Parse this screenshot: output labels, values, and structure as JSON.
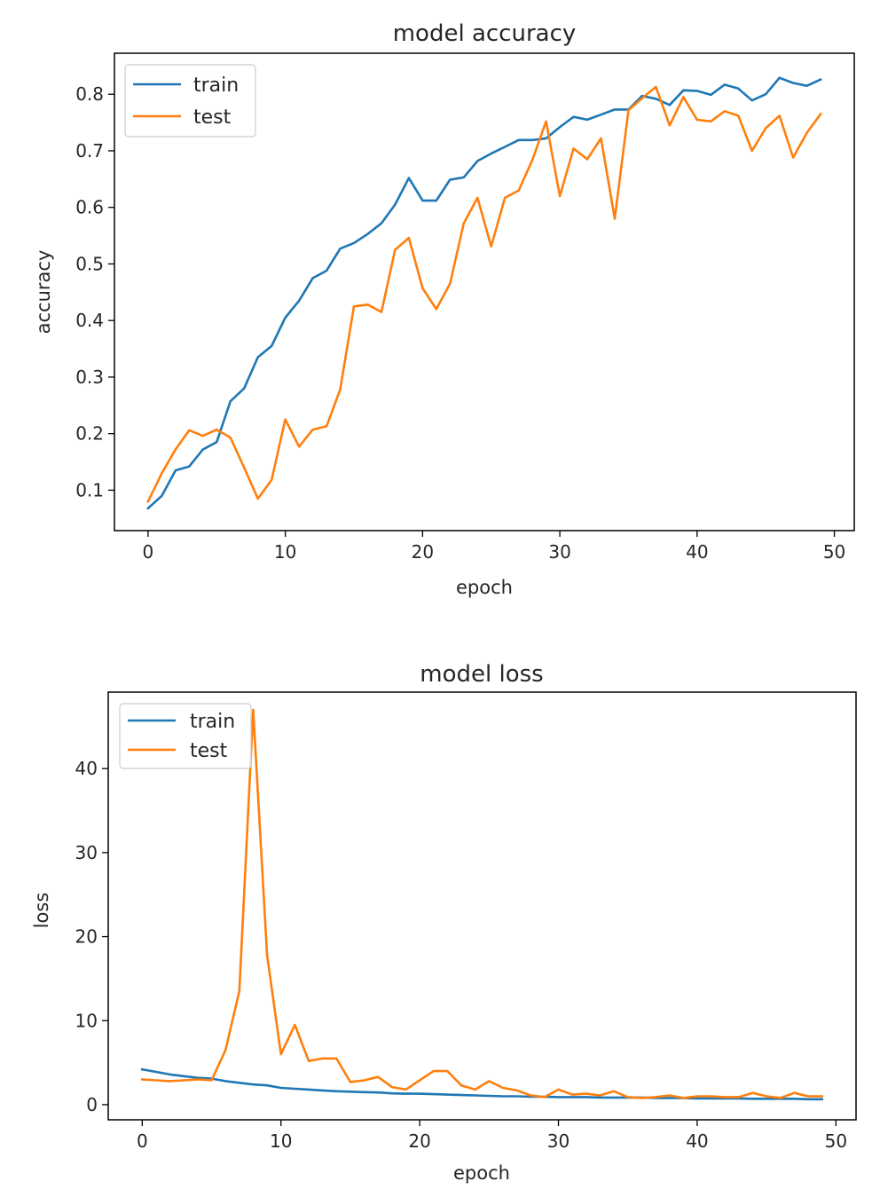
{
  "chart_data": [
    {
      "type": "line",
      "title": "model accuracy",
      "xlabel": "epoch",
      "ylabel": "accuracy",
      "xlim": [
        -2.45,
        51.45
      ],
      "ylim": [
        0.0285,
        0.8725
      ],
      "xticks": [
        0,
        10,
        20,
        30,
        40,
        50
      ],
      "yticks": [
        0.1,
        0.2,
        0.3,
        0.4,
        0.5,
        0.6,
        0.7,
        0.8
      ],
      "legend_position": "upper left",
      "series": [
        {
          "name": "train",
          "color": "#1f77b4",
          "x": [
            0,
            1,
            2,
            3,
            4,
            5,
            6,
            7,
            8,
            9,
            10,
            11,
            12,
            13,
            14,
            15,
            16,
            17,
            18,
            19,
            20,
            21,
            22,
            23,
            24,
            25,
            26,
            27,
            28,
            29,
            30,
            31,
            32,
            33,
            34,
            35,
            36,
            37,
            38,
            39,
            40,
            41,
            42,
            43,
            44,
            45,
            46,
            47,
            48,
            49
          ],
          "values": [
            0.068,
            0.09,
            0.135,
            0.142,
            0.172,
            0.185,
            0.257,
            0.28,
            0.335,
            0.355,
            0.405,
            0.435,
            0.475,
            0.488,
            0.527,
            0.537,
            0.553,
            0.572,
            0.605,
            0.652,
            0.612,
            0.612,
            0.649,
            0.653,
            0.682,
            0.695,
            0.707,
            0.719,
            0.719,
            0.722,
            0.742,
            0.76,
            0.755,
            0.764,
            0.773,
            0.773,
            0.797,
            0.792,
            0.781,
            0.807,
            0.806,
            0.799,
            0.817,
            0.81,
            0.789,
            0.8,
            0.829,
            0.82,
            0.815,
            0.826
          ]
        },
        {
          "name": "test",
          "color": "#ff7f0e",
          "x": [
            0,
            1,
            2,
            3,
            4,
            5,
            6,
            7,
            8,
            9,
            10,
            11,
            12,
            13,
            14,
            15,
            16,
            17,
            18,
            19,
            20,
            21,
            22,
            23,
            24,
            25,
            26,
            27,
            28,
            29,
            30,
            31,
            32,
            33,
            34,
            35,
            36,
            37,
            38,
            39,
            40,
            41,
            42,
            43,
            44,
            45,
            46,
            47,
            48,
            49
          ],
          "values": [
            0.08,
            0.13,
            0.172,
            0.206,
            0.196,
            0.207,
            0.193,
            0.14,
            0.085,
            0.118,
            0.225,
            0.177,
            0.207,
            0.213,
            0.278,
            0.425,
            0.428,
            0.415,
            0.525,
            0.546,
            0.457,
            0.42,
            0.465,
            0.572,
            0.617,
            0.531,
            0.617,
            0.63,
            0.684,
            0.752,
            0.62,
            0.704,
            0.685,
            0.722,
            0.58,
            0.772,
            0.793,
            0.813,
            0.745,
            0.795,
            0.755,
            0.752,
            0.77,
            0.762,
            0.7,
            0.74,
            0.762,
            0.688,
            0.732,
            0.765
          ]
        }
      ]
    },
    {
      "type": "line",
      "title": "model loss",
      "xlabel": "epoch",
      "ylabel": "loss",
      "xlim": [
        -2.45,
        51.45
      ],
      "ylim": [
        -1.8,
        49.1
      ],
      "xticks": [
        0,
        10,
        20,
        30,
        40,
        50
      ],
      "yticks": [
        0,
        10,
        20,
        30,
        40
      ],
      "legend_position": "upper left",
      "series": [
        {
          "name": "train",
          "color": "#1f77b4",
          "x": [
            0,
            1,
            2,
            3,
            4,
            5,
            6,
            7,
            8,
            9,
            10,
            11,
            12,
            13,
            14,
            15,
            16,
            17,
            18,
            19,
            20,
            21,
            22,
            23,
            24,
            25,
            26,
            27,
            28,
            29,
            30,
            31,
            32,
            33,
            34,
            35,
            36,
            37,
            38,
            39,
            40,
            41,
            42,
            43,
            44,
            45,
            46,
            47,
            48,
            49
          ],
          "values": [
            4.2,
            3.9,
            3.6,
            3.4,
            3.2,
            3.1,
            2.8,
            2.6,
            2.4,
            2.3,
            2.0,
            1.9,
            1.8,
            1.7,
            1.6,
            1.55,
            1.5,
            1.45,
            1.35,
            1.3,
            1.3,
            1.25,
            1.2,
            1.15,
            1.1,
            1.05,
            1.0,
            1.0,
            0.95,
            0.95,
            0.9,
            0.9,
            0.9,
            0.85,
            0.85,
            0.85,
            0.85,
            0.8,
            0.8,
            0.8,
            0.75,
            0.75,
            0.75,
            0.75,
            0.7,
            0.7,
            0.7,
            0.7,
            0.65,
            0.65
          ]
        },
        {
          "name": "test",
          "color": "#ff7f0e",
          "x": [
            0,
            1,
            2,
            3,
            4,
            5,
            6,
            7,
            8,
            9,
            10,
            11,
            12,
            13,
            14,
            15,
            16,
            17,
            18,
            19,
            20,
            21,
            22,
            23,
            24,
            25,
            26,
            27,
            28,
            29,
            30,
            31,
            32,
            33,
            34,
            35,
            36,
            37,
            38,
            39,
            40,
            41,
            42,
            43,
            44,
            45,
            46,
            47,
            48,
            49
          ],
          "values": [
            3.0,
            2.9,
            2.8,
            2.9,
            3.0,
            2.9,
            6.5,
            13.5,
            47.0,
            17.8,
            6.0,
            9.5,
            5.2,
            5.5,
            5.5,
            2.7,
            2.9,
            3.3,
            2.1,
            1.8,
            2.9,
            4.0,
            4.0,
            2.3,
            1.8,
            2.8,
            2.0,
            1.7,
            1.1,
            0.9,
            1.8,
            1.2,
            1.3,
            1.1,
            1.6,
            0.9,
            0.8,
            0.9,
            1.1,
            0.8,
            1.0,
            1.0,
            0.9,
            0.9,
            1.4,
            1.0,
            0.8,
            1.4,
            1.0,
            1.0
          ]
        }
      ]
    }
  ]
}
